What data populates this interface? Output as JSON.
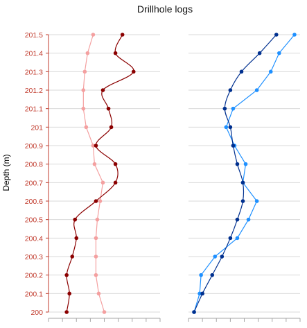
{
  "chart_data": {
    "type": "line",
    "title": "Drillhole logs",
    "ylabel": "Depth (m)",
    "ylim": [
      200,
      201.5
    ],
    "y_ticks": [
      "201.5",
      "201.4",
      "201.3",
      "201.2",
      "201.1",
      "201",
      "200.9",
      "200.8",
      "200.7",
      "200.6",
      "200.5",
      "200.4",
      "200.3",
      "200.2",
      "200.1",
      "200"
    ],
    "grid": true,
    "legend": "none",
    "axis_color": "#c0392b",
    "depth": [
      201.5,
      201.4,
      201.3,
      201.2,
      201.1,
      201.0,
      200.9,
      200.8,
      200.7,
      200.6,
      200.5,
      200.4,
      200.3,
      200.2,
      200.1,
      200.0
    ],
    "panels": [
      {
        "xlim": [
          0,
          8
        ],
        "series": [
          {
            "color": "#f4a0a0",
            "smooth": false,
            "values": [
              3.2,
              2.8,
              2.6,
              2.5,
              2.5,
              2.7,
              3.2,
              3.3,
              3.9,
              3.7,
              3.5,
              3.4,
              3.4,
              3.4,
              3.6,
              4.0
            ]
          },
          {
            "color": "#8b0000",
            "smooth": true,
            "values": [
              5.3,
              4.8,
              6.1,
              3.9,
              4.3,
              4.5,
              3.4,
              4.8,
              4.8,
              3.4,
              1.9,
              2.0,
              1.7,
              1.3,
              1.5,
              1.3
            ]
          }
        ]
      },
      {
        "xlim": [
          0,
          8
        ],
        "series": [
          {
            "color": "#1e90ff",
            "smooth": false,
            "values": [
              7.6,
              6.5,
              5.9,
              4.9,
              3.2,
              2.7,
              3.3,
              4.1,
              3.9,
              4.9,
              4.3,
              3.5,
              1.9,
              0.9,
              0.8,
              0.4
            ]
          },
          {
            "color": "#00308f",
            "smooth": true,
            "values": [
              6.3,
              5.1,
              3.8,
              3.0,
              2.6,
              3.0,
              3.2,
              3.5,
              3.9,
              3.9,
              3.5,
              3.0,
              2.4,
              1.7,
              1.0,
              0.4
            ]
          }
        ]
      }
    ]
  }
}
